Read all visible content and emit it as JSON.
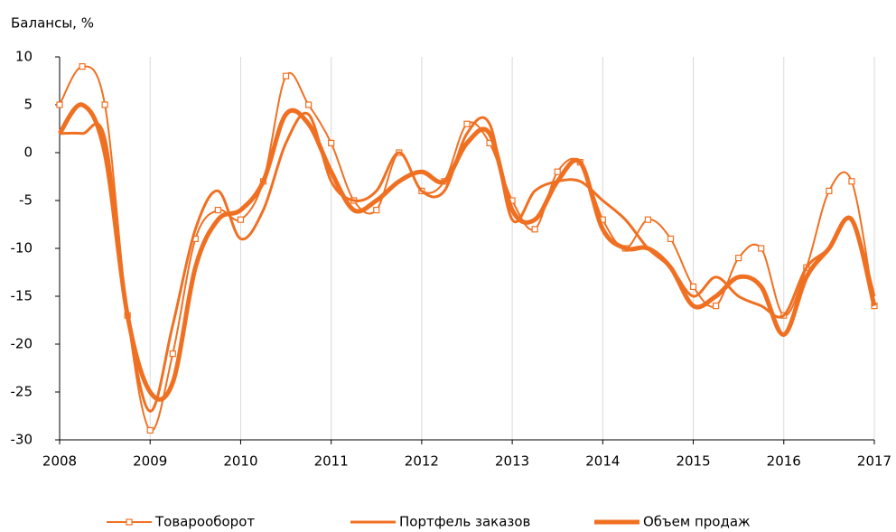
{
  "chart_data": {
    "type": "line",
    "ylabel": "Балансы, %",
    "x": [
      2008,
      2008.25,
      2008.5,
      2008.75,
      2009,
      2009.25,
      2009.5,
      2009.75,
      2010,
      2010.25,
      2010.5,
      2010.75,
      2011,
      2011.25,
      2011.5,
      2011.75,
      2012,
      2012.25,
      2012.5,
      2012.75,
      2013,
      2013.25,
      2013.5,
      2013.75,
      2014,
      2014.25,
      2014.5,
      2014.75,
      2015,
      2015.25,
      2015.5,
      2015.75,
      2016,
      2016.25,
      2016.5,
      2016.75,
      2017
    ],
    "series": [
      {
        "name": "Товарооборот",
        "color": "#f07022",
        "marker": true,
        "width": 2,
        "values": [
          5,
          9,
          5,
          -17,
          -29,
          -21,
          -9,
          -6,
          -7,
          -3,
          8,
          5,
          1,
          -5,
          -6,
          0,
          -4,
          -3,
          3,
          1,
          -5,
          -8,
          -2,
          -1,
          -7,
          -10,
          -7,
          -9,
          -14,
          -16,
          -11,
          -10,
          -17,
          -12,
          -4,
          -3,
          -16
        ]
      },
      {
        "name": "Портфель заказов",
        "color": "#f07022",
        "marker": false,
        "width": 3,
        "values": [
          2,
          2,
          1.5,
          -17,
          -27,
          -18,
          -8,
          -4,
          -9,
          -6,
          1,
          4,
          -3,
          -5,
          -4,
          0,
          -4,
          -4,
          2,
          3,
          -7,
          -4,
          -3,
          -3,
          -5,
          -7,
          -10,
          -12,
          -15,
          -13,
          -15,
          -16,
          -17,
          -12,
          -10,
          -7,
          -15
        ]
      },
      {
        "name": "Объем продаж",
        "color": "#f07022",
        "marker": false,
        "width": 5,
        "values": [
          2,
          5,
          0,
          -17,
          -25,
          -24,
          -12,
          -7,
          -6,
          -3,
          4,
          3,
          -2,
          -6,
          -5,
          -3,
          -2,
          -3,
          1,
          2,
          -6,
          -7,
          -3,
          -1,
          -8,
          -10,
          -10,
          -12,
          -16,
          -15,
          -13,
          -14,
          -19,
          -13,
          -10,
          -7,
          -16
        ]
      }
    ],
    "xlim": [
      2008,
      2017
    ],
    "xticks": [
      2008,
      2009,
      2010,
      2011,
      2012,
      2013,
      2014,
      2015,
      2016,
      2017
    ],
    "ylim": [
      -30,
      10
    ],
    "yticks": [
      -30,
      -25,
      -20,
      -15,
      -10,
      -5,
      0,
      5,
      10
    ],
    "grid": true,
    "legend": "bottom"
  }
}
